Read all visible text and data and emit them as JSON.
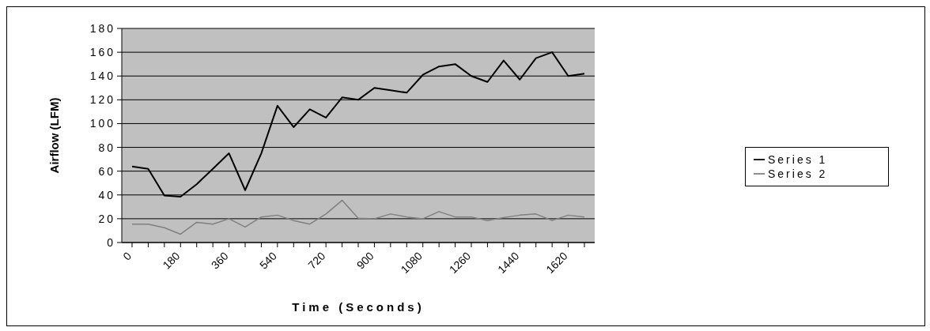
{
  "chart_data": {
    "type": "line",
    "xlabel": "Time (Seconds)",
    "ylabel": "Airflow (LFM)",
    "categories": [
      "0",
      null,
      null,
      "180",
      null,
      null,
      "360",
      null,
      null,
      "540",
      null,
      null,
      "720",
      null,
      null,
      "900",
      null,
      null,
      "1080",
      null,
      null,
      "1260",
      null,
      null,
      "1440",
      null,
      null,
      "1620",
      null
    ],
    "series": [
      {
        "name": "Series 1",
        "color": "#000000",
        "values": [
          64,
          62,
          39.5,
          38.5,
          49,
          62,
          75,
          44,
          75,
          115,
          97,
          112,
          105,
          122,
          120,
          130,
          128,
          126,
          141,
          148,
          150,
          140,
          135,
          153,
          137,
          155,
          160,
          140,
          142
        ]
      },
      {
        "name": "Series 2",
        "color": "#808080",
        "values": [
          15.5,
          15.5,
          12.5,
          7,
          17,
          15.5,
          20,
          13,
          21.5,
          23,
          18.5,
          15.5,
          24,
          35.5,
          20.5,
          20,
          24,
          21.5,
          20,
          26,
          21.5,
          21.5,
          18.5,
          21,
          23,
          24,
          18.5,
          23,
          21.5
        ]
      }
    ],
    "ylim": [
      0,
      180
    ],
    "yticks": [
      0,
      20,
      40,
      60,
      80,
      100,
      120,
      140,
      160,
      180
    ],
    "grid": "y",
    "legend": "right",
    "marker": "none",
    "line_style": "solid"
  }
}
